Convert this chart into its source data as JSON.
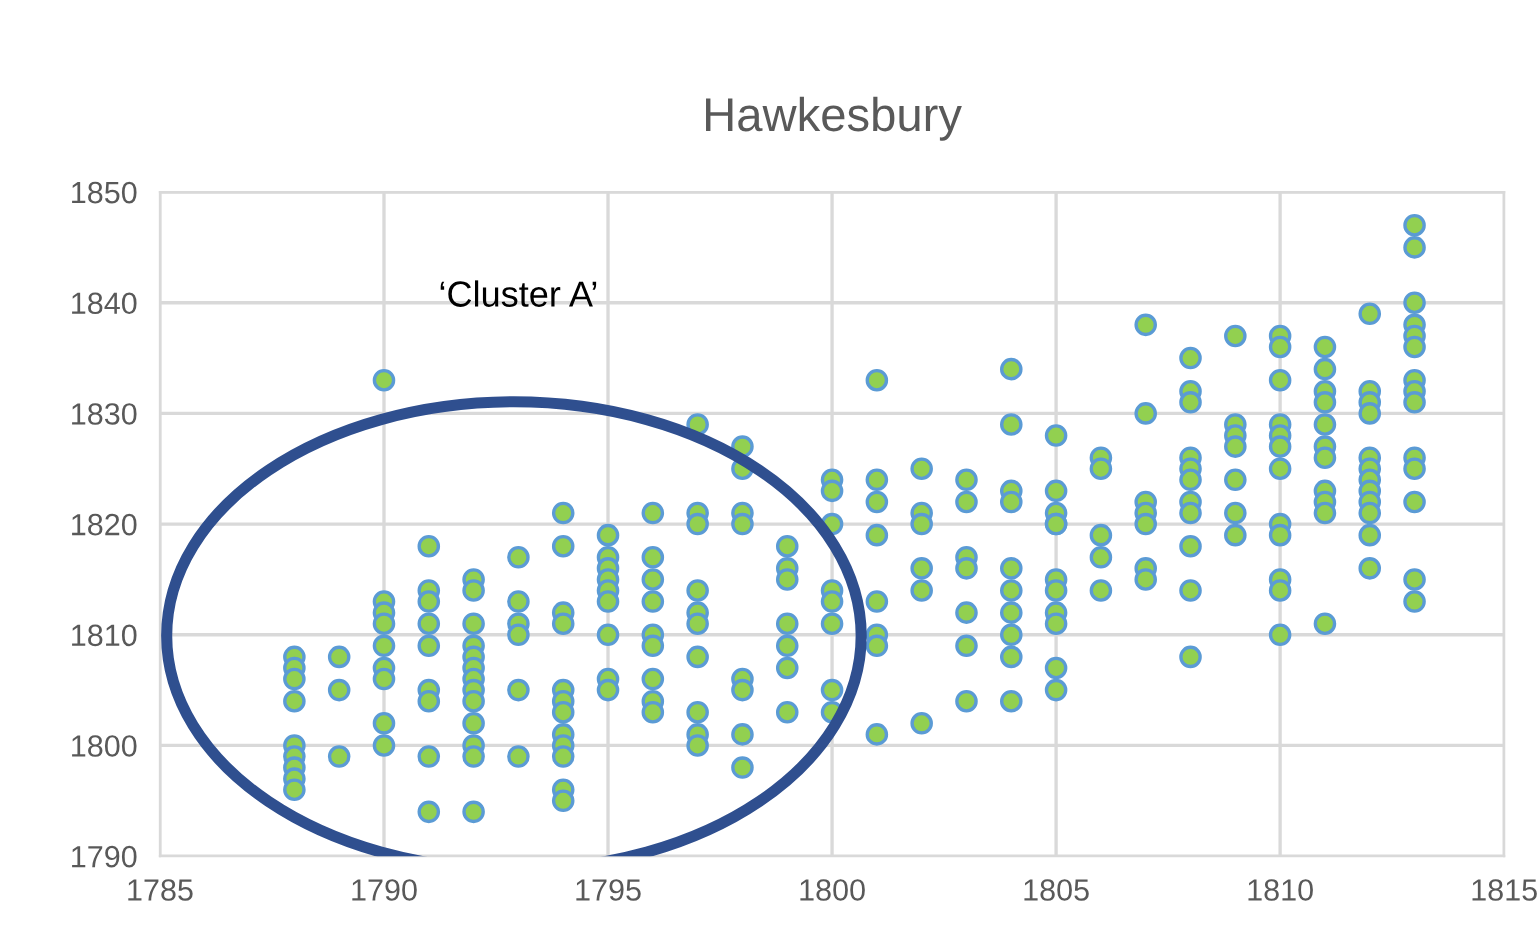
{
  "chart_data": {
    "type": "scatter",
    "title": "Hawkesbury",
    "annotations": [
      "‘Cluster A’"
    ],
    "xlim": [
      1785,
      1815
    ],
    "xticks": [
      1785,
      1790,
      1795,
      1800,
      1805,
      1810,
      1815
    ],
    "ylim": [
      1790,
      1850
    ],
    "yticks": [
      1790,
      1800,
      1810,
      1820,
      1830,
      1840,
      1850
    ],
    "grid": true,
    "marker": "circle",
    "legend": false,
    "series": [
      {
        "color": "#92d050",
        "x": [
          1788,
          1788,
          1788,
          1788,
          1788,
          1788,
          1788,
          1788,
          1788,
          1789,
          1789,
          1789,
          1790,
          1790,
          1790,
          1790,
          1790,
          1790,
          1790,
          1790,
          1790,
          1791,
          1791,
          1791,
          1791,
          1791,
          1791,
          1791,
          1791,
          1791,
          1792,
          1792,
          1792,
          1792,
          1792,
          1792,
          1792,
          1792,
          1792,
          1792,
          1792,
          1792,
          1792,
          1793,
          1793,
          1793,
          1793,
          1793,
          1793,
          1794,
          1794,
          1794,
          1794,
          1794,
          1794,
          1794,
          1794,
          1794,
          1794,
          1794,
          1794,
          1795,
          1795,
          1795,
          1795,
          1795,
          1795,
          1795,
          1795,
          1795,
          1796,
          1796,
          1796,
          1796,
          1796,
          1796,
          1796,
          1796,
          1796,
          1797,
          1797,
          1797,
          1797,
          1797,
          1797,
          1797,
          1797,
          1797,
          1797,
          1798,
          1798,
          1798,
          1798,
          1798,
          1798,
          1798,
          1798,
          1799,
          1799,
          1799,
          1799,
          1799,
          1799,
          1799,
          1800,
          1800,
          1800,
          1800,
          1800,
          1800,
          1800,
          1800,
          1801,
          1801,
          1801,
          1801,
          1801,
          1801,
          1801,
          1801,
          1802,
          1802,
          1802,
          1802,
          1802,
          1802,
          1803,
          1803,
          1803,
          1803,
          1803,
          1803,
          1803,
          1804,
          1804,
          1804,
          1804,
          1804,
          1804,
          1804,
          1804,
          1804,
          1804,
          1805,
          1805,
          1805,
          1805,
          1805,
          1805,
          1805,
          1805,
          1805,
          1805,
          1805,
          1806,
          1806,
          1806,
          1806,
          1806,
          1807,
          1807,
          1807,
          1807,
          1807,
          1807,
          1807,
          1808,
          1808,
          1808,
          1808,
          1808,
          1808,
          1808,
          1808,
          1808,
          1808,
          1808,
          1809,
          1809,
          1809,
          1809,
          1809,
          1809,
          1809,
          1810,
          1810,
          1810,
          1810,
          1810,
          1810,
          1810,
          1810,
          1810,
          1810,
          1810,
          1810,
          1811,
          1811,
          1811,
          1811,
          1811,
          1811,
          1811,
          1811,
          1811,
          1811,
          1811,
          1812,
          1812,
          1812,
          1812,
          1812,
          1812,
          1812,
          1812,
          1812,
          1812,
          1812,
          1812,
          1813,
          1813,
          1813,
          1813,
          1813,
          1813,
          1813,
          1813,
          1813,
          1813,
          1813,
          1813,
          1813,
          1813
        ],
        "values": [
          1808,
          1807,
          1806,
          1804,
          1800,
          1799,
          1798,
          1797,
          1796,
          1808,
          1805,
          1799,
          1833,
          1813,
          1812,
          1811,
          1809,
          1807,
          1806,
          1802,
          1800,
          1818,
          1814,
          1813,
          1811,
          1809,
          1805,
          1804,
          1799,
          1794,
          1815,
          1814,
          1811,
          1809,
          1808,
          1807,
          1806,
          1805,
          1804,
          1802,
          1800,
          1799,
          1794,
          1817,
          1813,
          1811,
          1810,
          1805,
          1799,
          1821,
          1818,
          1812,
          1811,
          1805,
          1804,
          1803,
          1801,
          1800,
          1799,
          1796,
          1795,
          1819,
          1817,
          1816,
          1815,
          1814,
          1813,
          1810,
          1806,
          1805,
          1821,
          1817,
          1815,
          1813,
          1810,
          1809,
          1806,
          1804,
          1803,
          1829,
          1821,
          1820,
          1814,
          1812,
          1811,
          1808,
          1803,
          1801,
          1800,
          1827,
          1825,
          1821,
          1820,
          1806,
          1805,
          1801,
          1798,
          1818,
          1816,
          1815,
          1811,
          1809,
          1807,
          1803,
          1824,
          1823,
          1820,
          1814,
          1813,
          1811,
          1805,
          1803,
          1833,
          1824,
          1822,
          1819,
          1813,
          1810,
          1809,
          1801,
          1825,
          1821,
          1820,
          1816,
          1814,
          1802,
          1824,
          1822,
          1817,
          1816,
          1812,
          1809,
          1804,
          1834,
          1829,
          1823,
          1822,
          1816,
          1814,
          1812,
          1810,
          1808,
          1804,
          1828,
          1823,
          1821,
          1820,
          1820,
          1815,
          1814,
          1812,
          1811,
          1807,
          1805,
          1826,
          1825,
          1819,
          1817,
          1814,
          1838,
          1830,
          1822,
          1821,
          1820,
          1816,
          1815,
          1835,
          1832,
          1831,
          1826,
          1825,
          1824,
          1822,
          1821,
          1818,
          1814,
          1808,
          1837,
          1829,
          1828,
          1827,
          1824,
          1821,
          1819,
          1837,
          1836,
          1833,
          1829,
          1828,
          1827,
          1825,
          1820,
          1819,
          1815,
          1814,
          1810,
          1836,
          1834,
          1832,
          1831,
          1829,
          1827,
          1826,
          1823,
          1822,
          1821,
          1811,
          1839,
          1832,
          1831,
          1830,
          1826,
          1825,
          1824,
          1823,
          1822,
          1821,
          1819,
          1816,
          1847,
          1845,
          1840,
          1838,
          1837,
          1836,
          1833,
          1832,
          1831,
          1826,
          1825,
          1822,
          1815,
          1813
        ]
      }
    ]
  }
}
